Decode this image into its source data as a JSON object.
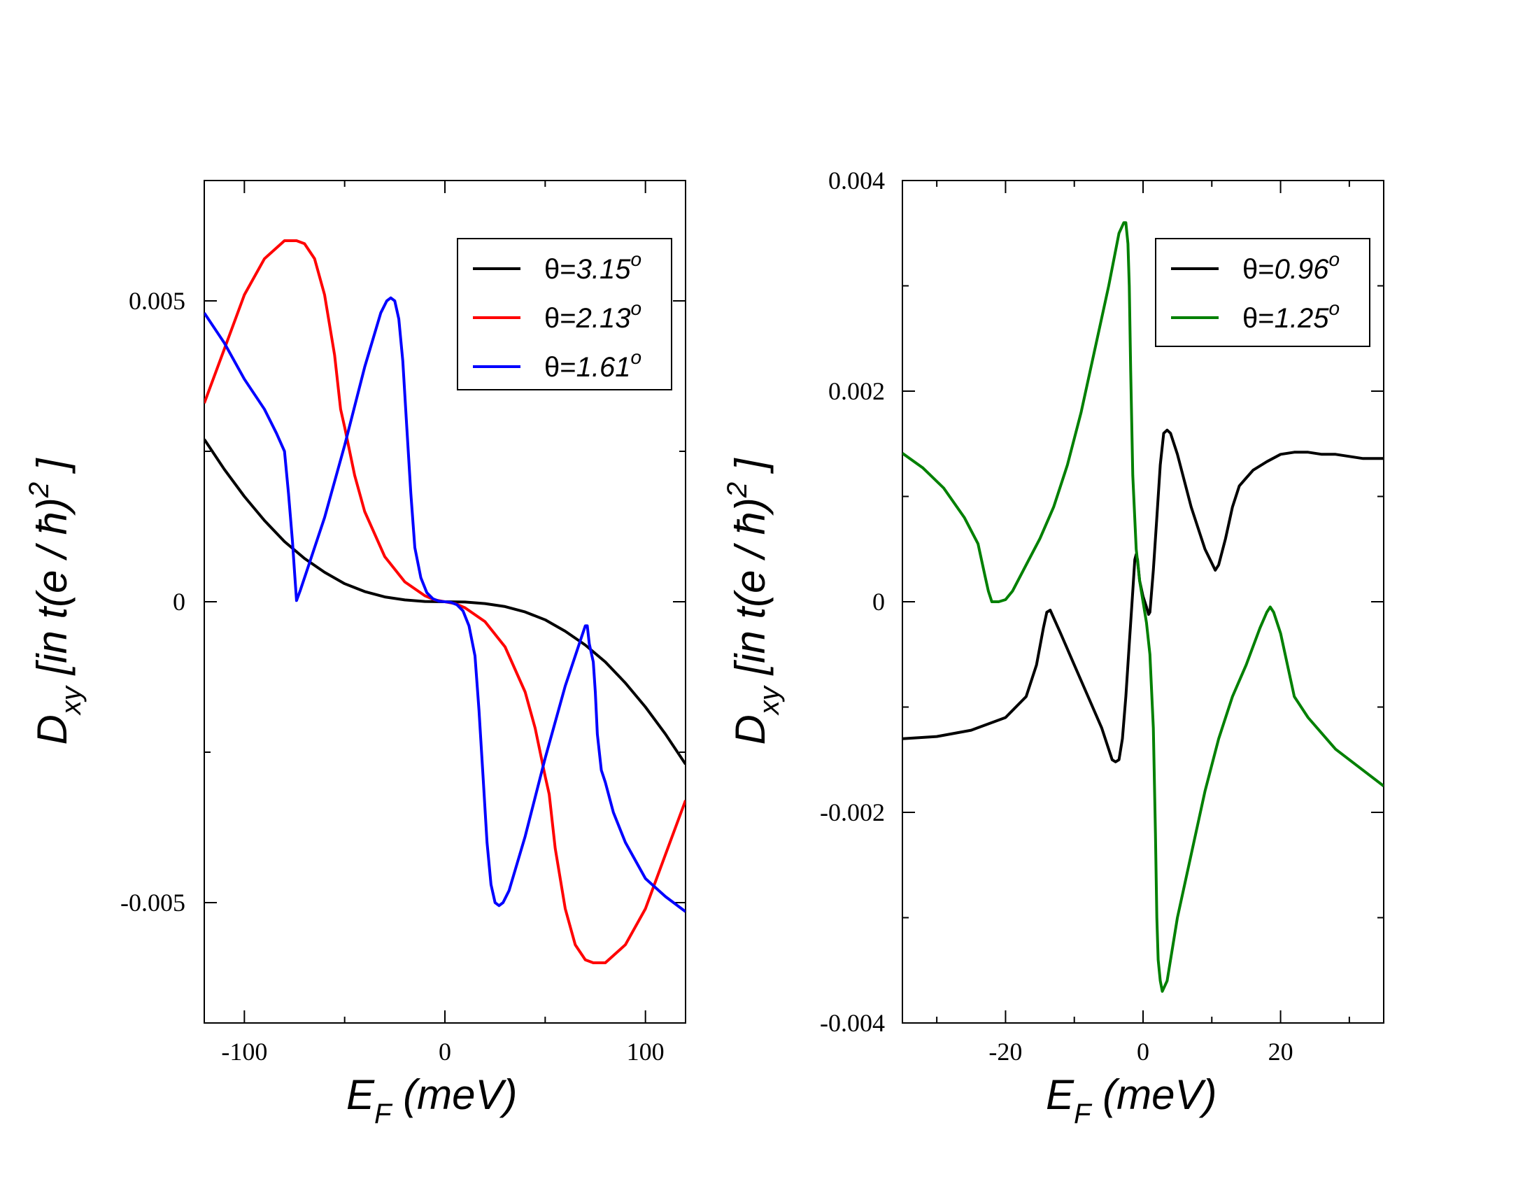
{
  "chart_data": [
    {
      "type": "line",
      "name": "left",
      "xlabel": "E_F (meV)",
      "xlabel_main": "E",
      "xlabel_sub": "F",
      "xlabel_rest": " (meV)",
      "ylabel": "D_xy [in t(e/ħ)^2]",
      "ylabel_main": "D",
      "ylabel_sub": "xy",
      "ylabel_rest": " [in t(e / ħ)",
      "ylabel_sup": "2",
      "ylabel_end": " ]",
      "xlim": [
        -120,
        120
      ],
      "ylim": [
        -0.007,
        0.007
      ],
      "xticks": [
        -100,
        0,
        100
      ],
      "xtick_labels": [
        "-100",
        "0",
        "100"
      ],
      "yticks": [
        -0.005,
        0,
        0.005
      ],
      "ytick_labels": [
        "-0.005",
        "0",
        "0.005"
      ],
      "x_minor": [
        -50,
        50
      ],
      "y_minor": [
        -0.0025,
        0.0025
      ],
      "legend_position": "top-right",
      "series": [
        {
          "name": "θ=3.15°",
          "label_prefix": "θ=",
          "label_value": "3.15",
          "label_sup": "o",
          "color": "#000000",
          "x": [
            -120,
            -110,
            -100,
            -90,
            -80,
            -70,
            -60,
            -50,
            -40,
            -30,
            -20,
            -10,
            0,
            10,
            20,
            30,
            40,
            50,
            60,
            70,
            80,
            90,
            100,
            110,
            120
          ],
          "y": [
            0.0027,
            0.0022,
            0.00175,
            0.00135,
            0.001,
            0.00072,
            0.00049,
            0.0003,
            0.00017,
            8e-05,
            3e-05,
            5e-06,
            0,
            -5e-06,
            -3e-05,
            -8e-05,
            -0.00017,
            -0.0003,
            -0.00049,
            -0.00072,
            -0.001,
            -0.00135,
            -0.00175,
            -0.0022,
            -0.0027
          ]
        },
        {
          "name": "θ=2.13°",
          "label_prefix": "θ=",
          "label_value": "2.13",
          "label_sup": "o",
          "color": "#ff0000",
          "x": [
            -120,
            -110,
            -100,
            -90,
            -80,
            -74,
            -70,
            -65,
            -60,
            -55,
            -52,
            -50,
            -45,
            -40,
            -30,
            -20,
            -10,
            -5,
            0,
            5,
            10,
            20,
            30,
            40,
            45,
            50,
            52,
            55,
            60,
            65,
            70,
            74,
            80,
            90,
            100,
            110,
            120
          ],
          "y": [
            0.0033,
            0.0042,
            0.0051,
            0.0057,
            0.006,
            0.006,
            0.00595,
            0.0057,
            0.0051,
            0.0041,
            0.0032,
            0.0029,
            0.0021,
            0.0015,
            0.00075,
            0.00033,
            0.0001,
            3e-05,
            0,
            -3e-05,
            -0.0001,
            -0.00033,
            -0.00075,
            -0.0015,
            -0.0021,
            -0.0029,
            -0.0032,
            -0.0041,
            -0.0051,
            -0.0057,
            -0.00595,
            -0.006,
            -0.006,
            -0.0057,
            -0.0051,
            -0.0042,
            -0.0033
          ]
        },
        {
          "name": "θ=1.61°",
          "label_prefix": "θ=",
          "label_value": "1.61",
          "label_sup": "o",
          "color": "#0000ff",
          "x": [
            -120,
            -110,
            -100,
            -90,
            -84,
            -80,
            -78,
            -76,
            -75,
            -74,
            -72,
            -68,
            -60,
            -50,
            -40,
            -32,
            -29,
            -27,
            -25,
            -23,
            -21,
            -19,
            -17,
            -15,
            -12,
            -9,
            -6,
            -3,
            0,
            3,
            6,
            9,
            12,
            15,
            17,
            19,
            21,
            23,
            25,
            27,
            29,
            32,
            40,
            50,
            60,
            68,
            70,
            71,
            72,
            74,
            75,
            76,
            78,
            80,
            84,
            90,
            100,
            110,
            120
          ],
          "y": [
            0.0048,
            0.0043,
            0.0037,
            0.0032,
            0.0028,
            0.0025,
            0.0018,
            0.001,
            0.0005,
            2e-05,
            0.0002,
            0.0006,
            0.0014,
            0.0026,
            0.0039,
            0.0048,
            0.005,
            0.00505,
            0.005,
            0.0047,
            0.004,
            0.0029,
            0.0018,
            0.0009,
            0.0004,
            0.00015,
            5e-05,
            1e-05,
            0,
            -1e-05,
            -5e-05,
            -0.00015,
            -0.0004,
            -0.0009,
            -0.0018,
            -0.0029,
            -0.004,
            -0.0047,
            -0.005,
            -0.00505,
            -0.005,
            -0.0048,
            -0.0039,
            -0.0026,
            -0.0014,
            -0.0006,
            -0.0004,
            -0.0004,
            -0.0007,
            -0.001,
            -0.0015,
            -0.0022,
            -0.0028,
            -0.003,
            -0.0035,
            -0.004,
            -0.0046,
            -0.0049,
            -0.00515
          ]
        }
      ]
    },
    {
      "type": "line",
      "name": "right",
      "xlabel": "E_F (meV)",
      "xlabel_main": "E",
      "xlabel_sub": "F",
      "xlabel_rest": " (meV)",
      "ylabel": "D_xy [in t(e/ħ)^2]",
      "ylabel_main": "D",
      "ylabel_sub": "xy",
      "ylabel_rest": " [in t(e / ħ)",
      "ylabel_sup": "2",
      "ylabel_end": " ]",
      "xlim": [
        -35,
        35
      ],
      "ylim": [
        -0.004,
        0.004
      ],
      "xticks": [
        -20,
        0,
        20
      ],
      "xtick_labels": [
        "-20",
        "0",
        "20"
      ],
      "yticks": [
        -0.004,
        -0.002,
        0,
        0.002,
        0.004
      ],
      "ytick_labels": [
        "-0.004",
        "-0.002",
        "0",
        "0.002",
        "0.004"
      ],
      "x_minor": [
        -30,
        -10,
        10,
        30
      ],
      "y_minor": [
        -0.003,
        -0.001,
        0.001,
        0.003
      ],
      "legend_position": "top-right",
      "series": [
        {
          "name": "θ=0.96°",
          "label_prefix": "θ=",
          "label_value": "0.96",
          "label_sup": "o",
          "color": "#000000",
          "x": [
            -35,
            -30,
            -25,
            -20,
            -17,
            -15.5,
            -14.5,
            -14,
            -13.5,
            -12,
            -10,
            -8,
            -6,
            -4.5,
            -4,
            -3.5,
            -3,
            -2.5,
            -2,
            -1.5,
            -1.2,
            -1,
            -0.8,
            -0.5,
            0,
            0.5,
            0.8,
            1,
            1.5,
            2,
            2.5,
            3,
            3.5,
            4,
            5,
            7,
            9,
            10.5,
            11,
            12,
            13,
            14,
            16,
            18,
            20,
            22,
            24,
            26,
            28,
            30,
            32,
            35
          ],
          "y": [
            -0.0013,
            -0.00128,
            -0.00122,
            -0.0011,
            -0.0009,
            -0.0006,
            -0.00025,
            -0.0001,
            -8e-05,
            -0.0003,
            -0.0006,
            -0.0009,
            -0.0012,
            -0.0015,
            -0.00152,
            -0.0015,
            -0.0013,
            -0.0009,
            -0.0004,
            0.0001,
            0.0004,
            0.00045,
            0.0004,
            0.0002,
            5e-05,
            -5e-05,
            -0.00012,
            -0.0001,
            0.0003,
            0.0008,
            0.0013,
            0.0016,
            0.00163,
            0.0016,
            0.0014,
            0.0009,
            0.0005,
            0.0003,
            0.00035,
            0.0006,
            0.0009,
            0.0011,
            0.00125,
            0.00133,
            0.0014,
            0.00142,
            0.00142,
            0.0014,
            0.0014,
            0.00138,
            0.00136,
            0.00136
          ]
        },
        {
          "name": "θ=1.25°",
          "label_prefix": "θ=",
          "label_value": "1.25",
          "label_sup": "o",
          "color": "#008000",
          "x": [
            -35,
            -32,
            -29,
            -26,
            -24,
            -23,
            -22.5,
            -22,
            -21,
            -20,
            -19,
            -17,
            -15,
            -13,
            -11,
            -9,
            -7,
            -5,
            -3.5,
            -2.8,
            -2.5,
            -2.2,
            -2,
            -1.8,
            -1.5,
            -1,
            -0.5,
            0,
            0.5,
            1,
            1.5,
            1.8,
            2,
            2.2,
            2.5,
            2.8,
            3.5,
            5,
            7,
            9,
            11,
            13,
            15,
            17,
            18,
            18.5,
            19,
            20,
            22,
            24,
            26,
            28,
            30,
            32,
            35
          ],
          "y": [
            0.00141,
            0.00127,
            0.00108,
            0.0008,
            0.00055,
            0.00025,
            0.0001,
            0,
            0,
            2e-05,
            0.0001,
            0.00035,
            0.0006,
            0.0009,
            0.0013,
            0.0018,
            0.0024,
            0.003,
            0.0035,
            0.0036,
            0.0036,
            0.0034,
            0.003,
            0.0022,
            0.0012,
            0.0005,
            0.0002,
            0,
            -0.0002,
            -0.0005,
            -0.0012,
            -0.0022,
            -0.003,
            -0.0034,
            -0.0036,
            -0.0037,
            -0.0036,
            -0.003,
            -0.0024,
            -0.0018,
            -0.0013,
            -0.0009,
            -0.0006,
            -0.00025,
            -0.0001,
            -5e-05,
            -0.0001,
            -0.0003,
            -0.0009,
            -0.0011,
            -0.00125,
            -0.0014,
            -0.0015,
            -0.0016,
            -0.00175
          ]
        }
      ]
    }
  ]
}
